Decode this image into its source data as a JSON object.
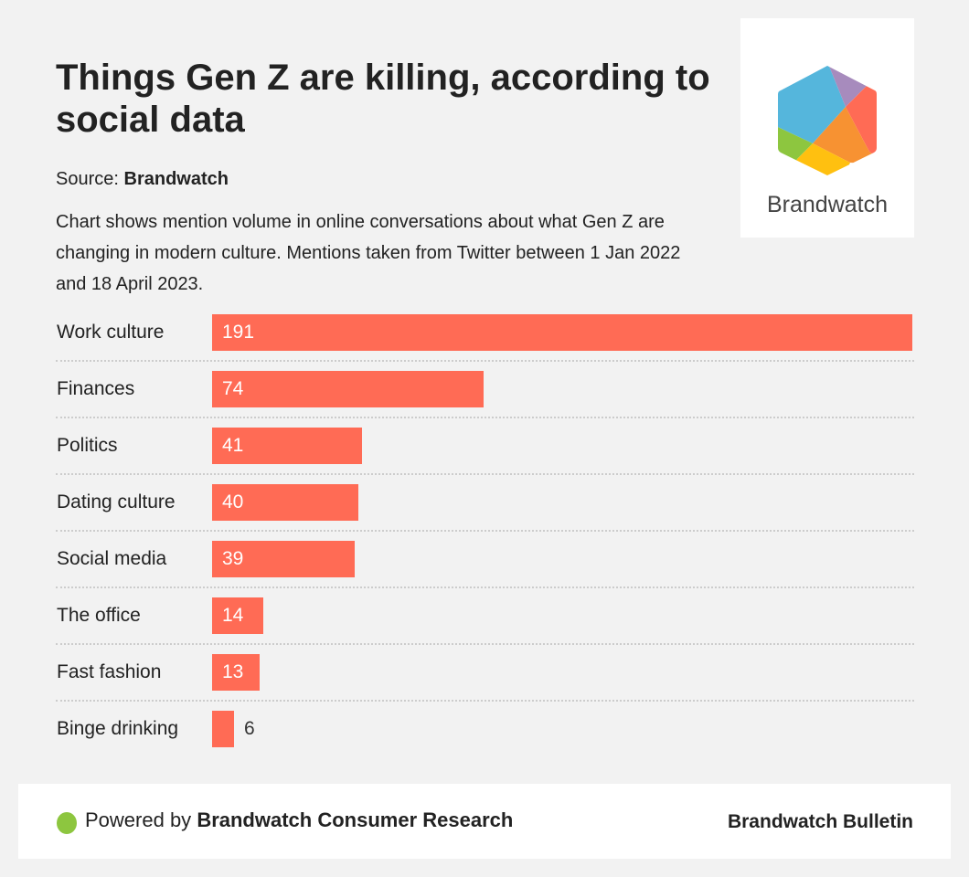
{
  "header": {
    "title": "Things Gen Z are killing, according to social data",
    "source_label": "Source:",
    "source_name": "Brandwatch",
    "description": "Chart shows mention volume in online conversations about what Gen Z are changing in modern culture. Mentions taken from Twitter between 1 Jan 2022 and 18 April 2023."
  },
  "logo": {
    "text": "Brandwatch"
  },
  "colors": {
    "bar": "#ff6b55",
    "background": "#f2f2f2",
    "logo_blue": "#55b6dc",
    "logo_purple": "#a78bbd",
    "logo_red": "#ff6b55",
    "logo_orange": "#f79232",
    "logo_yellow": "#ffc010",
    "logo_green": "#8dc63f"
  },
  "chart_data": {
    "type": "bar",
    "orientation": "horizontal",
    "title": "Things Gen Z are killing, according to social data",
    "categories": [
      "Work culture",
      "Finances",
      "Politics",
      "Dating culture",
      "Social media",
      "The office",
      "Fast fashion",
      "Binge drinking"
    ],
    "values": [
      191,
      74,
      41,
      40,
      39,
      14,
      13,
      6
    ],
    "xlim": [
      0,
      191
    ],
    "grid": false
  },
  "footer": {
    "powered_prefix": "Powered by",
    "powered_name": "Brandwatch Consumer Research",
    "bulletin": "Brandwatch Bulletin"
  }
}
